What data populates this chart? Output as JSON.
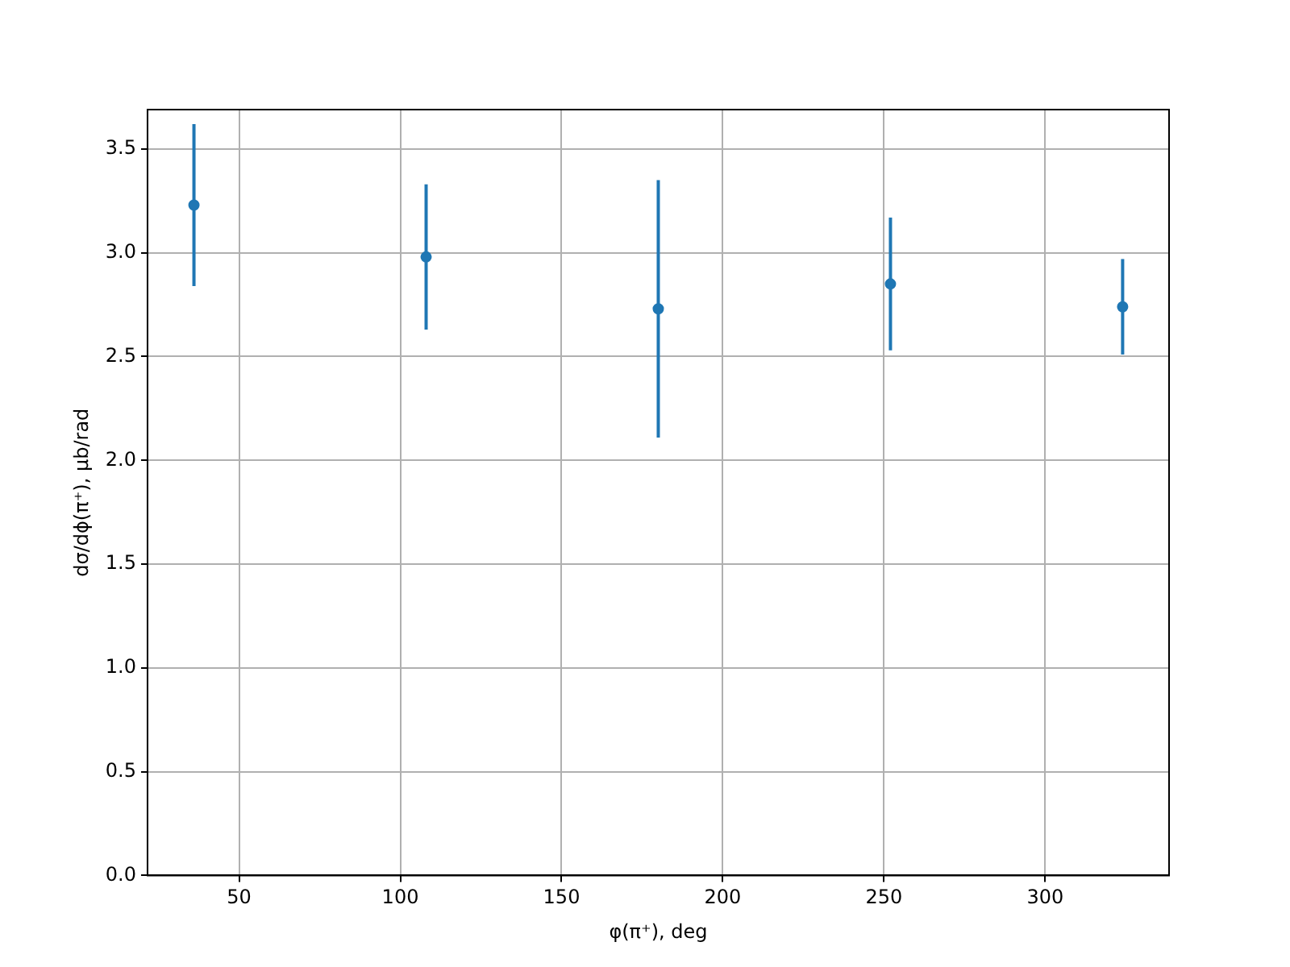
{
  "chart_data": {
    "type": "scatter",
    "xlabel": "φ(π⁺), deg",
    "ylabel": "dσ/dϕ(π⁺), μb/rad",
    "x": [
      36,
      108,
      180,
      252,
      324
    ],
    "series": [
      {
        "color": "#1f77b4",
        "values": [
          3.23,
          2.98,
          2.73,
          2.85,
          2.74
        ],
        "errors": [
          0.39,
          0.35,
          0.62,
          0.32,
          0.23
        ]
      }
    ],
    "xlim": [
      21.6,
      338.4
    ],
    "xticks": [
      50,
      100,
      150,
      200,
      250,
      300
    ],
    "ylim": [
      0,
      3.69
    ],
    "yticks": [
      {
        "value": 0,
        "label": "0.0"
      },
      0.5,
      {
        "value": 1,
        "label": "1.0"
      },
      1.5,
      {
        "value": 2,
        "label": "2.0"
      },
      2.5,
      {
        "value": 3,
        "label": "3.0"
      },
      3.5
    ],
    "grid": true,
    "legend": false,
    "marker": "circle"
  }
}
